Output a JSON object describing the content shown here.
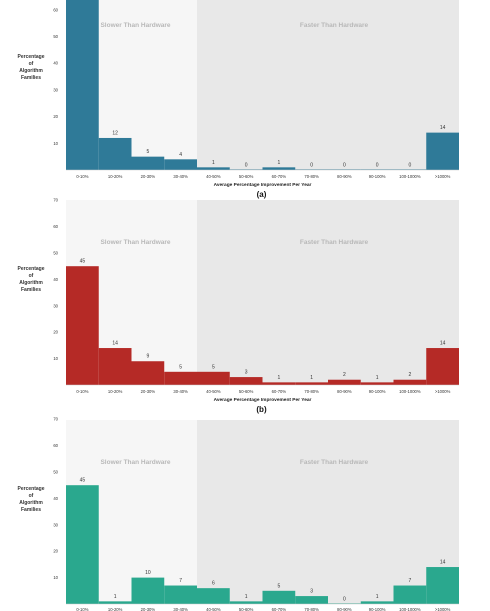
{
  "figure_y_label": [
    "Percentage",
    "of",
    "Algorithm",
    "Families"
  ],
  "x_axis_title": "Average Percentage Improvement Per Year",
  "region_labels": {
    "left": "Slower Than Hardware",
    "right": "Faster Than Hardware"
  },
  "chart_data": [
    {
      "type": "bar",
      "subfigure": "(a)",
      "color": "#2f7a98",
      "categories": [
        "0-10%",
        "10-20%",
        "20-30%",
        "30-40%",
        "40-50%",
        "50-60%",
        "60-70%",
        "70-80%",
        "80-90%",
        "90-100%",
        "100-1000%",
        ">1000%"
      ],
      "values": [
        64,
        12,
        5,
        4,
        1,
        0,
        1,
        0,
        0,
        0,
        0,
        14
      ],
      "data_labels": [
        "",
        "12",
        "5",
        "4",
        "1",
        "0",
        "1",
        "0",
        "0",
        "0",
        "0",
        "14"
      ],
      "yticks": [
        "10",
        "20",
        "30",
        "40",
        "50",
        "60"
      ],
      "ylim": [
        0,
        65
      ]
    },
    {
      "type": "bar",
      "subfigure": "(b)",
      "color": "#b52a26",
      "categories": [
        "0-10%",
        "10-20%",
        "20-30%",
        "30-40%",
        "40-50%",
        "50-60%",
        "60-70%",
        "70-80%",
        "80-90%",
        "90-100%",
        "100-1000%",
        ">1000%"
      ],
      "values": [
        45,
        14,
        9,
        5,
        5,
        3,
        1,
        1,
        2,
        1,
        2,
        14
      ],
      "data_labels": [
        "45",
        "14",
        "9",
        "5",
        "5",
        "3",
        "1",
        "1",
        "2",
        "1",
        "2",
        "14"
      ],
      "yticks": [
        "10",
        "20",
        "30",
        "40",
        "50",
        "60",
        "70"
      ],
      "ylim": [
        0,
        70
      ]
    },
    {
      "type": "bar",
      "subfigure": "",
      "color": "#2aa88e",
      "categories": [
        "0-10%",
        "10-20%",
        "20-30%",
        "30-40%",
        "40-50%",
        "50-60%",
        "60-70%",
        "70-80%",
        "80-90%",
        "90-100%",
        "100-1000%",
        ">1000%"
      ],
      "values": [
        45,
        1,
        10,
        7,
        6,
        1,
        5,
        3,
        0,
        1,
        7,
        14
      ],
      "data_labels": [
        "45",
        "1",
        "10",
        "7",
        "6",
        "1",
        "5",
        "3",
        "0",
        "1",
        "7",
        "14"
      ],
      "yticks": [
        "10",
        "20",
        "30",
        "40",
        "50",
        "60",
        "70"
      ],
      "ylim": [
        0,
        70
      ]
    }
  ]
}
